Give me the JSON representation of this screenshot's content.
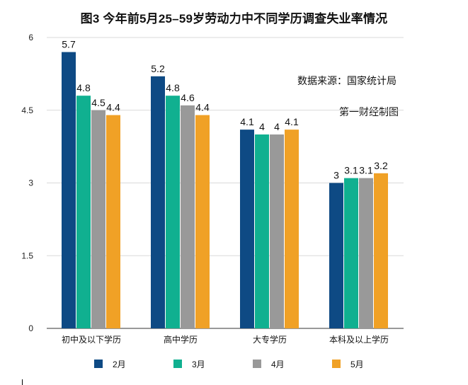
{
  "title": "图3 今年前5月25–59岁劳动力中不同学历调查失业率情况",
  "source": "数据来源：国家统计局",
  "credit": "第一财经制图",
  "chart_data": {
    "type": "bar",
    "title": "图3 今年前5月25–59岁劳动力中不同学历调查失业率情况",
    "xlabel": "",
    "ylabel": "",
    "ylim": [
      0,
      6
    ],
    "yticks": [
      0,
      1.5,
      3,
      4.5,
      6
    ],
    "ytick_labels": [
      "0",
      "1.5",
      "3",
      "4.5",
      "6"
    ],
    "grid": true,
    "legend_position": "bottom",
    "categories": [
      "初中及以下学历",
      "高中学历",
      "大专学历",
      "本科及以上学历"
    ],
    "series": [
      {
        "name": "2月",
        "color": "#0e4a84",
        "values": [
          5.7,
          5.2,
          4.1,
          3
        ],
        "labels": [
          "5.7",
          "5.2",
          "4.1",
          "3"
        ]
      },
      {
        "name": "3月",
        "color": "#10b090",
        "values": [
          4.8,
          4.8,
          4,
          3.1
        ],
        "labels": [
          "4.8",
          "4.8",
          "4",
          "3.1"
        ]
      },
      {
        "name": "4月",
        "color": "#999999",
        "values": [
          4.5,
          4.6,
          4,
          3.1
        ],
        "labels": [
          "4.5",
          "4.6",
          "4",
          "3.1"
        ]
      },
      {
        "name": "5月",
        "color": "#f0a126",
        "values": [
          4.4,
          4.4,
          4.1,
          3.2
        ],
        "labels": [
          "4.4",
          "4.4",
          "4.1",
          "3.2"
        ]
      }
    ]
  }
}
